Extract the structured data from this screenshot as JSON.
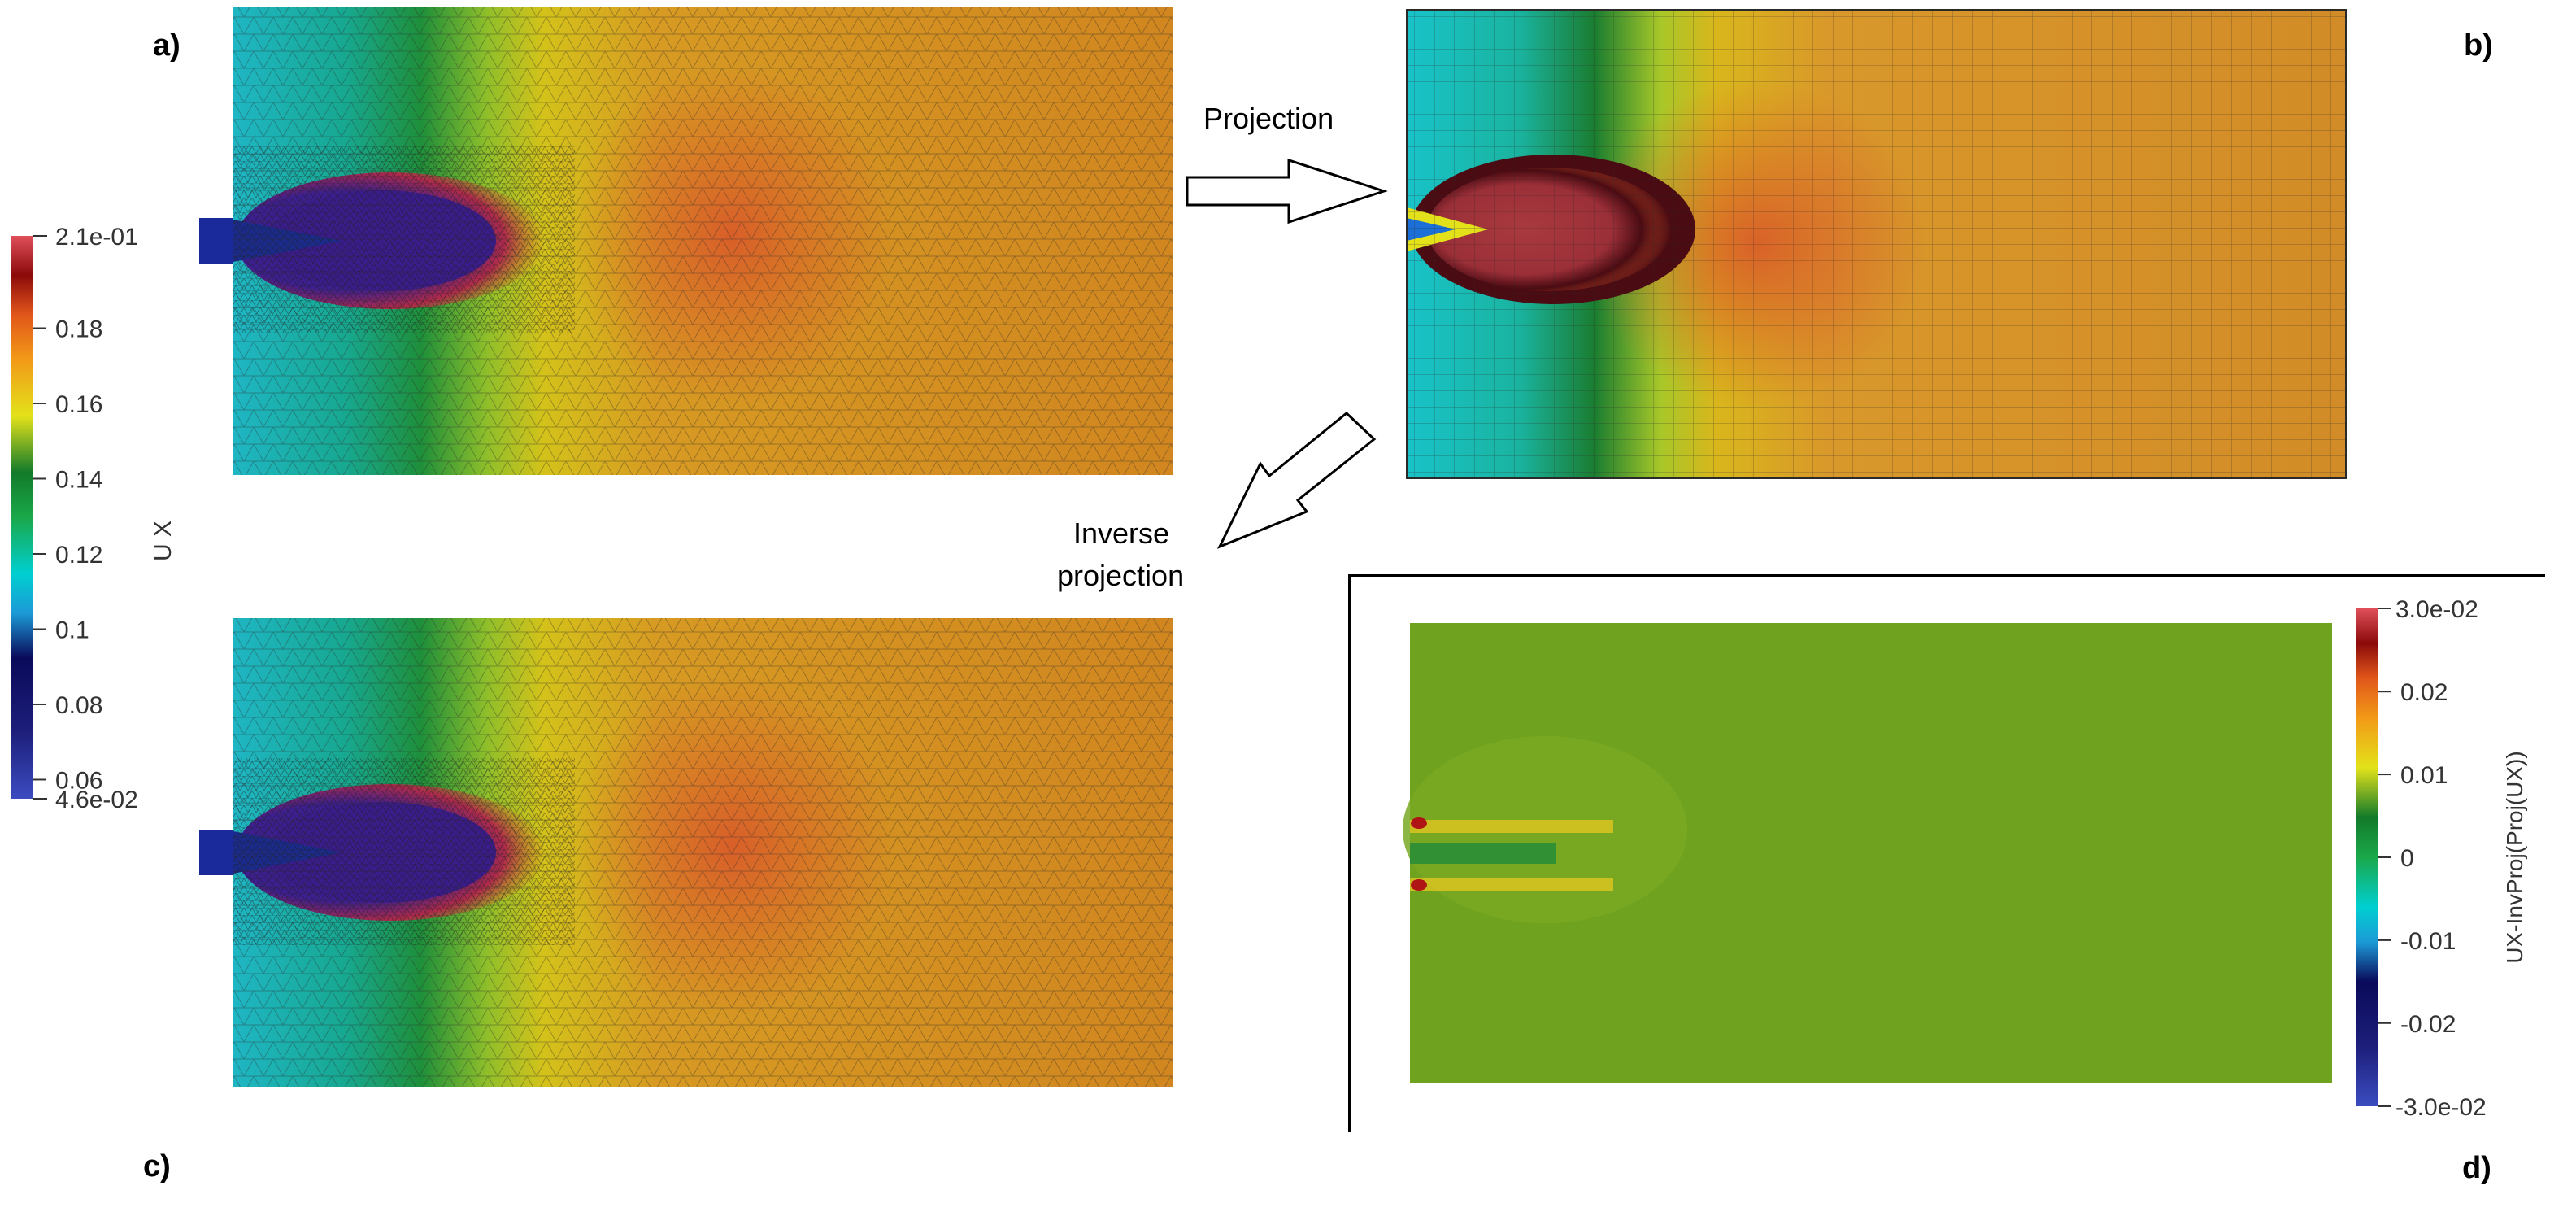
{
  "panel_labels": {
    "a": "a)",
    "b": "b)",
    "c": "c)",
    "d": "d)"
  },
  "arrows": {
    "projection": "Projection",
    "inverse_line1": "Inverse",
    "inverse_line2": "projection"
  },
  "colorbar_ux": {
    "title": "U X",
    "max_label": "2.1e-01",
    "min_label": "4.6e-02",
    "ticks": [
      "0.18",
      "0.16",
      "0.14",
      "0.12",
      "0.1",
      "0.08",
      "0.06"
    ]
  },
  "colorbar_diff": {
    "title": "UX-InvProj(Proj(UX))",
    "max_label": "3.0e-02",
    "min_label": "-3.0e-02",
    "ticks": [
      "0.02",
      "0.01",
      "0",
      "-0.01",
      "-0.02"
    ]
  },
  "colors": {
    "ux_scale": [
      "#3b4cc0",
      "#1d1e7a",
      "#0a0a5a",
      "#1c9ad6",
      "#00cfd0",
      "#1aa84a",
      "#127a2a",
      "#e3e21a",
      "#f29a17",
      "#e1561a",
      "#8b0a0a",
      "#e04f5a"
    ],
    "diff_field": "#6fa21f"
  }
}
